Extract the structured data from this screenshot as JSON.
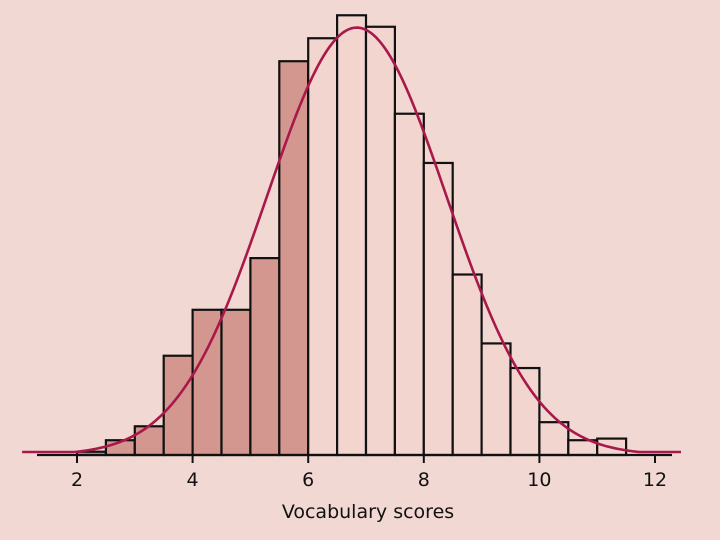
{
  "chart_data": {
    "type": "bar",
    "xlabel": "Vocabulary scores",
    "ylabel": "",
    "title": "",
    "xlim": [
      1.0,
      12.5
    ],
    "ylim": [
      0,
      0.27
    ],
    "x_ticks": [
      2,
      4,
      6,
      8,
      10,
      12
    ],
    "bin_width": 0.5,
    "bins": [
      {
        "x0": 2.0,
        "value": 0.002,
        "shaded": true
      },
      {
        "x0": 2.5,
        "value": 0.009,
        "shaded": true
      },
      {
        "x0": 3.0,
        "value": 0.0175,
        "shaded": true
      },
      {
        "x0": 3.5,
        "value": 0.0605,
        "shaded": true
      },
      {
        "x0": 4.0,
        "value": 0.0885,
        "shaded": true
      },
      {
        "x0": 4.5,
        "value": 0.0885,
        "shaded": true
      },
      {
        "x0": 5.0,
        "value": 0.12,
        "shaded": true
      },
      {
        "x0": 5.5,
        "value": 0.24,
        "shaded": true
      },
      {
        "x0": 6.0,
        "value": 0.254,
        "shaded": false
      },
      {
        "x0": 6.5,
        "value": 0.268,
        "shaded": false
      },
      {
        "x0": 7.0,
        "value": 0.261,
        "shaded": false
      },
      {
        "x0": 7.5,
        "value": 0.208,
        "shaded": false
      },
      {
        "x0": 8.0,
        "value": 0.178,
        "shaded": false
      },
      {
        "x0": 8.5,
        "value": 0.11,
        "shaded": false
      },
      {
        "x0": 9.0,
        "value": 0.068,
        "shaded": false
      },
      {
        "x0": 9.5,
        "value": 0.053,
        "shaded": false
      },
      {
        "x0": 10.0,
        "value": 0.02,
        "shaded": false
      },
      {
        "x0": 10.5,
        "value": 0.009,
        "shaded": false
      },
      {
        "x0": 11.0,
        "value": 0.01,
        "shaded": false
      }
    ],
    "curve": {
      "type": "normal",
      "mean": 6.84,
      "sd": 1.55
    },
    "grid": false,
    "legend": "none",
    "colors": {
      "background": "#f2d8d2",
      "shaded_bar": "#d4978f",
      "unshaded_bar": "#f3d5d0",
      "curve": "#a8194a",
      "axis": "#111111"
    }
  }
}
